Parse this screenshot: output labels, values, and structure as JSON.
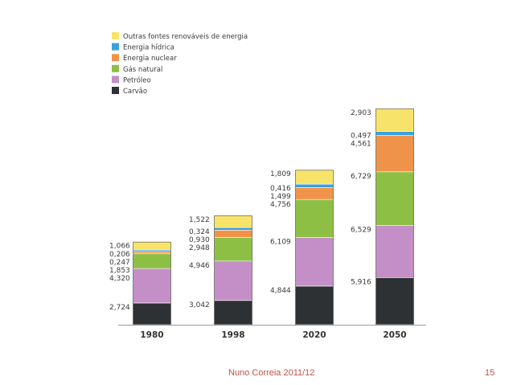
{
  "chart_data": {
    "type": "bar",
    "stacked": true,
    "categories": [
      "1980",
      "1998",
      "2020",
      "2050"
    ],
    "series": [
      {
        "name": "Carvão",
        "color": "#2e3134",
        "labels": [
          "2,724",
          "3,042",
          "4,844",
          "5,916"
        ],
        "values": [
          2.724,
          3.042,
          4.844,
          5.916
        ]
      },
      {
        "name": "Petróleo",
        "color": "#c48fc6",
        "labels": [
          "4,320",
          "4,946",
          "6,109",
          "6,529"
        ],
        "values": [
          4.32,
          4.946,
          6.109,
          6.529
        ]
      },
      {
        "name": "Gás natural",
        "color": "#8dbf44",
        "labels": [
          "1,853",
          "2,948",
          "4,756",
          "6,729"
        ],
        "values": [
          1.853,
          2.948,
          4.756,
          6.729
        ]
      },
      {
        "name": "Energia nuclear",
        "color": "#f0934a",
        "labels": [
          "0,247",
          "0,930",
          "1,499",
          "4,561"
        ],
        "values": [
          0.247,
          0.93,
          1.499,
          4.561
        ]
      },
      {
        "name": "Energia hídrica",
        "color": "#3aa1dc",
        "labels": [
          "0,206",
          "0,324",
          "0,416",
          "0,497"
        ],
        "values": [
          0.206,
          0.324,
          0.416,
          0.497
        ]
      },
      {
        "name": "Outras fontes renováveis de energia",
        "color": "#f8e36a",
        "labels": [
          "1,066",
          "1,522",
          "1,809",
          "2,903"
        ],
        "values": [
          1.066,
          1.522,
          1.809,
          2.903
        ]
      }
    ],
    "legend_order": [
      5,
      4,
      3,
      2,
      1,
      0
    ],
    "legend_position": "top-left",
    "title": "",
    "xlabel": "",
    "ylabel": ""
  },
  "footer": {
    "author": "Nuno Correia 2011/12",
    "page": "15"
  }
}
